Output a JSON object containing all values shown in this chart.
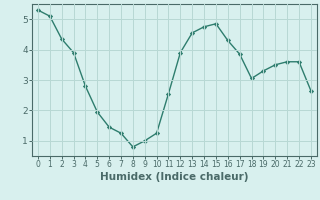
{
  "x": [
    0,
    1,
    2,
    3,
    4,
    5,
    6,
    7,
    8,
    9,
    10,
    11,
    12,
    13,
    14,
    15,
    16,
    17,
    18,
    19,
    20,
    21,
    22,
    23
  ],
  "y": [
    5.3,
    5.1,
    4.35,
    3.9,
    2.8,
    1.95,
    1.45,
    1.25,
    0.8,
    1.0,
    1.25,
    2.55,
    3.9,
    4.55,
    4.75,
    4.85,
    4.3,
    3.85,
    3.05,
    3.3,
    3.5,
    3.6,
    3.6,
    2.65
  ],
  "xlabel": "Humidex (Indice chaleur)",
  "xlim": [
    -0.5,
    23.5
  ],
  "ylim": [
    0.5,
    5.5
  ],
  "yticks": [
    1,
    2,
    3,
    4,
    5
  ],
  "xticks": [
    0,
    1,
    2,
    3,
    4,
    5,
    6,
    7,
    8,
    9,
    10,
    11,
    12,
    13,
    14,
    15,
    16,
    17,
    18,
    19,
    20,
    21,
    22,
    23
  ],
  "line_color": "#2e7d6e",
  "marker": "D",
  "marker_size": 2.2,
  "bg_color": "#d8f0ee",
  "grid_color": "#b8d8d4",
  "axes_color": "#4a6a68",
  "tick_label_fontsize": 5.5,
  "xlabel_fontsize": 7.5
}
